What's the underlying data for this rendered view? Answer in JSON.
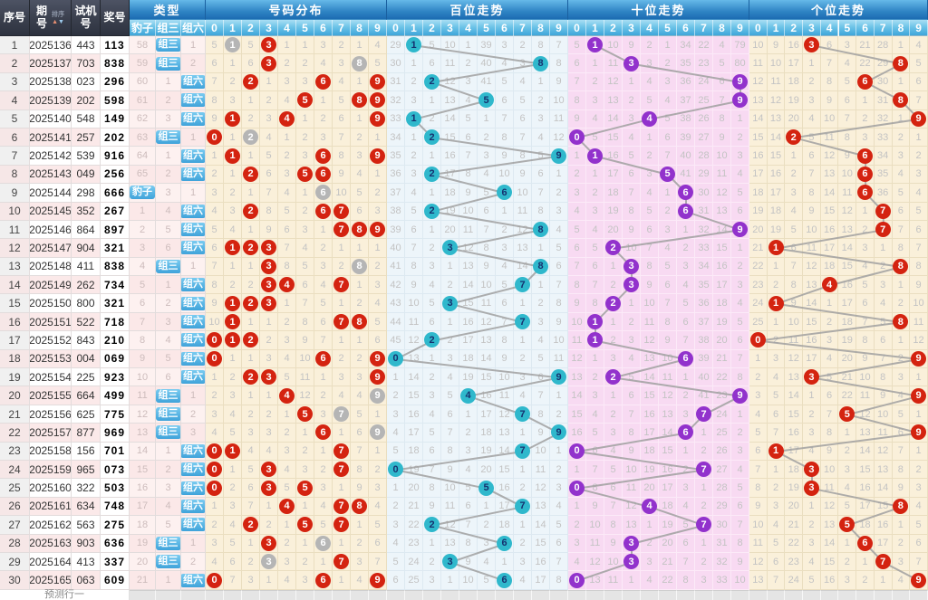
{
  "header": {
    "serial": "序号",
    "period": "期号",
    "sort": "排序",
    "test": "试机号",
    "prize": "奖号",
    "type_group": "类型",
    "types": [
      "豹子",
      "组三",
      "组六"
    ],
    "sections": [
      "号码分布",
      "百位走势",
      "十位走势",
      "个位走势"
    ],
    "digits": [
      "0",
      "1",
      "2",
      "3",
      "4",
      "5",
      "6",
      "7",
      "8",
      "9"
    ]
  },
  "footer": {
    "label": "预测行一"
  },
  "colors": {
    "header_dark": "#3a3f4d",
    "band_blue": "#2f84c4",
    "digit_band_blue": "#6ec4e8",
    "chip_blue": "#54b4e4",
    "dist_bg": "#faf0da",
    "bai_bg": "#edf5fa",
    "shi_bg": "#f8daf2",
    "ge_bg": "#faf0da",
    "circle_single_red": "#d42310",
    "circle_repeat_gray": "#b5b5b5",
    "circle_bai": "#2fb8cc",
    "circle_bai_text": "#16306e",
    "circle_shi": "#9232cc",
    "circle_ge": "#d42310",
    "trend_line": "#a0a0a0"
  },
  "chart_data": {
    "type": "table",
    "columns": [
      "序号",
      "期号",
      "试机号",
      "奖号",
      "豹子",
      "组三",
      "组六",
      "号码分布0-9",
      "百位走势0-9",
      "十位走势0-9",
      "个位走势0-9"
    ],
    "rows": [
      {
        "no": 1,
        "period": "2025136",
        "test": "443",
        "prize": "113",
        "type": "组三"
      },
      {
        "no": 2,
        "period": "2025137",
        "test": "703",
        "prize": "838",
        "type": "组三"
      },
      {
        "no": 3,
        "period": "2025138",
        "test": "023",
        "prize": "296",
        "type": "组六"
      },
      {
        "no": 4,
        "period": "2025139",
        "test": "202",
        "prize": "598",
        "type": "组六"
      },
      {
        "no": 5,
        "period": "2025140",
        "test": "548",
        "prize": "149",
        "type": "组六"
      },
      {
        "no": 6,
        "period": "2025141",
        "test": "257",
        "prize": "202",
        "type": "组三"
      },
      {
        "no": 7,
        "period": "2025142",
        "test": "539",
        "prize": "916",
        "type": "组六"
      },
      {
        "no": 8,
        "period": "2025143",
        "test": "049",
        "prize": "256",
        "type": "组六"
      },
      {
        "no": 9,
        "period": "2025144",
        "test": "298",
        "prize": "666",
        "type": "豹子"
      },
      {
        "no": 10,
        "period": "2025145",
        "test": "352",
        "prize": "267",
        "type": "组六"
      },
      {
        "no": 11,
        "period": "2025146",
        "test": "864",
        "prize": "897",
        "type": "组六"
      },
      {
        "no": 12,
        "period": "2025147",
        "test": "904",
        "prize": "321",
        "type": "组六"
      },
      {
        "no": 13,
        "period": "2025148",
        "test": "411",
        "prize": "838",
        "type": "组三"
      },
      {
        "no": 14,
        "period": "2025149",
        "test": "262",
        "prize": "734",
        "type": "组六"
      },
      {
        "no": 15,
        "period": "2025150",
        "test": "800",
        "prize": "321",
        "type": "组六"
      },
      {
        "no": 16,
        "period": "2025151",
        "test": "522",
        "prize": "718",
        "type": "组六"
      },
      {
        "no": 17,
        "period": "2025152",
        "test": "843",
        "prize": "210",
        "type": "组六"
      },
      {
        "no": 18,
        "period": "2025153",
        "test": "004",
        "prize": "069",
        "type": "组六"
      },
      {
        "no": 19,
        "period": "2025154",
        "test": "225",
        "prize": "923",
        "type": "组六"
      },
      {
        "no": 20,
        "period": "2025155",
        "test": "664",
        "prize": "499",
        "type": "组三"
      },
      {
        "no": 21,
        "period": "2025156",
        "test": "625",
        "prize": "775",
        "type": "组三"
      },
      {
        "no": 22,
        "period": "2025157",
        "test": "877",
        "prize": "969",
        "type": "组三"
      },
      {
        "no": 23,
        "period": "2025158",
        "test": "156",
        "prize": "701",
        "type": "组六"
      },
      {
        "no": 24,
        "period": "2025159",
        "test": "965",
        "prize": "073",
        "type": "组六"
      },
      {
        "no": 25,
        "period": "2025160",
        "test": "322",
        "prize": "503",
        "type": "组六"
      },
      {
        "no": 26,
        "period": "2025161",
        "test": "634",
        "prize": "748",
        "type": "组六"
      },
      {
        "no": 27,
        "period": "2025162",
        "test": "563",
        "prize": "275",
        "type": "组六"
      },
      {
        "no": 28,
        "period": "2025163",
        "test": "903",
        "prize": "636",
        "type": "组三"
      },
      {
        "no": 29,
        "period": "2025164",
        "test": "413",
        "prize": "337",
        "type": "组三"
      },
      {
        "no": 30,
        "period": "2025165",
        "test": "063",
        "prize": "609",
        "type": "组六"
      }
    ],
    "miss_seeds": {
      "baozi": 57,
      "zusan": 0,
      "zuliu": 0,
      "dist": [
        4,
        0,
        4,
        0,
        0,
        0,
        2,
        1,
        0,
        3
      ],
      "bai": [
        28,
        0,
        4,
        9,
        0,
        38,
        2,
        1,
        7,
        6
      ],
      "shi": [
        4,
        0,
        9,
        8,
        1,
        0,
        33,
        21,
        3,
        78
      ],
      "ge": [
        9,
        8,
        15,
        2,
        5,
        2,
        20,
        27,
        0,
        3
      ]
    }
  }
}
